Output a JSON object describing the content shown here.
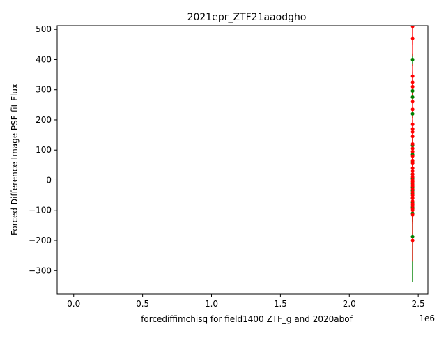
{
  "chart_data": {
    "type": "scatter",
    "title": "2021epr_ZTF21aaodgho",
    "xlabel": "forcediffimchisq for field1400 ZTF_g and 2020abof",
    "ylabel": "Forced Difference Image PSF-fit Flux",
    "x_offset_label": "1e6",
    "xlim": [
      -0.12,
      2.57
    ],
    "ylim": [
      -378,
      512
    ],
    "x_ticks": [
      0.0,
      0.5,
      1.0,
      1.5,
      2.0,
      2.5
    ],
    "x_tick_labels": [
      "0.0",
      "0.5",
      "1.0",
      "1.5",
      "2.0",
      "2.5"
    ],
    "y_ticks": [
      -300,
      -200,
      -100,
      0,
      100,
      200,
      300,
      400,
      500
    ],
    "y_tick_labels": [
      "−300",
      "−200",
      "−100",
      "0",
      "100",
      "200",
      "300",
      "400",
      "500"
    ],
    "grid": false,
    "legend": "none",
    "series": [
      {
        "color": "#008000",
        "x": [
          2.459,
          2.459,
          2.459,
          2.459,
          2.459,
          2.459,
          2.459,
          2.459,
          2.459,
          2.459,
          2.459,
          2.459,
          2.459,
          2.459,
          2.459,
          2.459,
          2.459,
          2.459
        ],
        "y": [
          400,
          296,
          275,
          220,
          115,
          85,
          60,
          20,
          5,
          -10,
          -25,
          -35,
          -45,
          -60,
          -75,
          -90,
          -110,
          -187
        ],
        "errors": [
          20,
          25,
          20,
          15,
          25,
          20,
          30,
          25,
          30,
          25,
          30,
          25,
          30,
          25,
          30,
          25,
          30,
          150
        ]
      },
      {
        "color": "#ff0000",
        "x": [
          2.4595,
          2.4595,
          2.4595,
          2.4595,
          2.4595,
          2.4595,
          2.4595,
          2.4595,
          2.4595,
          2.4595,
          2.4595,
          2.4595,
          2.4595,
          2.4595,
          2.4595,
          2.4595,
          2.4595,
          2.4595,
          2.4595,
          2.4595,
          2.4595,
          2.4595,
          2.4595,
          2.4595,
          2.4595,
          2.4595,
          2.4595,
          2.4595,
          2.4595,
          2.4595,
          2.4595,
          2.4595,
          2.4595,
          2.4595,
          2.4595,
          2.4595
        ],
        "y": [
          470,
          345,
          325,
          310,
          260,
          235,
          185,
          170,
          160,
          145,
          120,
          105,
          95,
          80,
          65,
          55,
          40,
          30,
          20,
          10,
          0,
          -5,
          -15,
          -20,
          -30,
          -40,
          -50,
          -60,
          -70,
          -80,
          -85,
          -95,
          -100,
          -115,
          -200,
          510
        ],
        "errors": [
          60,
          40,
          35,
          35,
          35,
          30,
          30,
          30,
          30,
          35,
          35,
          30,
          30,
          35,
          30,
          30,
          30,
          30,
          35,
          35,
          35,
          30,
          30,
          35,
          35,
          30,
          30,
          35,
          35,
          30,
          30,
          35,
          35,
          30,
          70,
          60
        ]
      }
    ]
  }
}
